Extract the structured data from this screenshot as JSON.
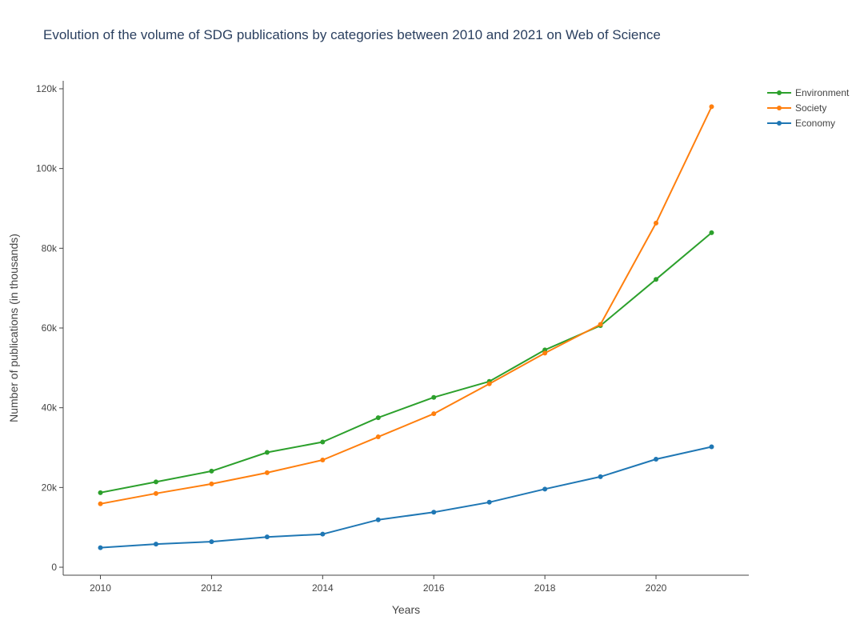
{
  "colors": {
    "environment": "#2ca02c",
    "society": "#ff7f0e",
    "economy": "#1f77b4",
    "axis": "#444444"
  },
  "chart_data": {
    "type": "line",
    "title": "Evolution of the volume of SDG publications by categories between 2010 and 2021 on Web of Science",
    "xlabel": "Years",
    "ylabel": "Number of publications (in thousands)",
    "x": [
      2010,
      2011,
      2012,
      2013,
      2014,
      2015,
      2016,
      2017,
      2018,
      2019,
      2020,
      2021
    ],
    "xlim": [
      2009.33,
      2021.67
    ],
    "ylim": [
      -2000,
      122000
    ],
    "x_ticks": [
      "2010",
      "2012",
      "2014",
      "2016",
      "2018",
      "2020"
    ],
    "x_tick_values": [
      2010,
      2012,
      2014,
      2016,
      2018,
      2020
    ],
    "y_ticks": [
      "0",
      "20k",
      "40k",
      "60k",
      "80k",
      "100k",
      "120k"
    ],
    "y_tick_values": [
      0,
      20000,
      40000,
      60000,
      80000,
      100000,
      120000
    ],
    "grid": false,
    "legend_position": "top-right",
    "series": [
      {
        "name": "Environment",
        "color": "#2ca02c",
        "values": [
          18700,
          21400,
          24100,
          28800,
          31400,
          37500,
          42600,
          46600,
          54500,
          60600,
          72200,
          83900
        ]
      },
      {
        "name": "Society",
        "color": "#ff7f0e",
        "values": [
          15900,
          18500,
          20900,
          23700,
          26900,
          32700,
          38500,
          46000,
          53700,
          60900,
          86300,
          115500
        ]
      },
      {
        "name": "Economy",
        "color": "#1f77b4",
        "values": [
          4900,
          5800,
          6400,
          7600,
          8300,
          11900,
          13800,
          16300,
          19600,
          22700,
          27100,
          30200
        ]
      }
    ]
  }
}
